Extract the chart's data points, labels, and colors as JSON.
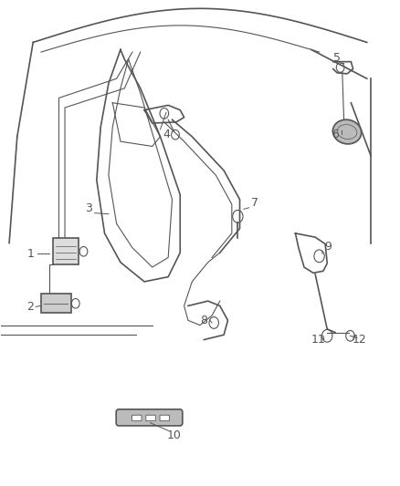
{
  "bg_color": "#ffffff",
  "line_color": "#555555",
  "label_color": "#555555",
  "label_fontsize": 9,
  "fig_width": 4.38,
  "fig_height": 5.33,
  "dpi": 100
}
